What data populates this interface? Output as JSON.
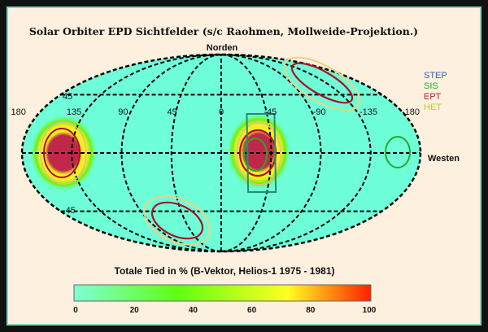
{
  "title": "Solar Orbiter EPD Sichtfelder (s/c Raohmen, Mollweide-Projektion.)",
  "north_label": "Norden",
  "west_label": "Westen",
  "longitude_labels": [
    "180",
    "135",
    "90",
    "45",
    "0",
    "-45",
    "-90",
    "-135",
    "-180"
  ],
  "latitude_labels": [
    "45",
    "-45"
  ],
  "legend": [
    {
      "label": "STEP",
      "color": "#2e5fc0"
    },
    {
      "label": "SIS",
      "color": "#2aa62a"
    },
    {
      "label": "EPT",
      "color": "#b81e2a"
    },
    {
      "label": "HET",
      "color": "#c8c040"
    }
  ],
  "colorbar": {
    "title": "Totale Tied in % (B-Vektor, Helios-1   1975 - 1981)",
    "ticks": [
      "0",
      "20",
      "40",
      "60",
      "80",
      "100"
    ],
    "colors": [
      "#7fffd4",
      "#60ff10",
      "#ffff20",
      "#ff2000"
    ]
  },
  "map_background": "#6effd8"
}
